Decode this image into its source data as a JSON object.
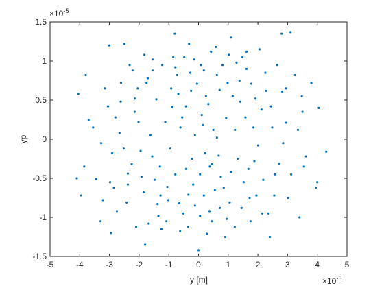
{
  "chart_data": {
    "type": "scatter",
    "xlabel": "y [m]",
    "ylabel": "yp",
    "exponent_base": "×10",
    "x_exponent": "-5",
    "y_exponent": "-5",
    "xlim": [
      -5,
      5
    ],
    "ylim": [
      -1.5,
      1.5
    ],
    "xticks": [
      -5,
      -4,
      -3,
      -2,
      -1,
      0,
      1,
      2,
      3,
      4,
      5
    ],
    "yticks": [
      -1.5,
      -1,
      -0.5,
      0,
      0.5,
      1,
      1.5
    ],
    "grid": false,
    "box": true,
    "series": [
      {
        "color": "#0072bd",
        "x": [
          -0.12,
          0.45,
          -0.88,
          1.23,
          -1.56,
          0.71,
          -0.34,
          2.01,
          -2.15,
          0.18,
          1.52,
          -1.05,
          0.93,
          -0.61,
          2.44,
          -2.38,
          0.05,
          1.78,
          -1.71,
          0.37,
          -0.25,
          2.71,
          -2.66,
          1.05,
          -1.22,
          0.62,
          -0.95,
          1.41,
          -1.38,
          0.22,
          2.95,
          -2.91,
          0.81,
          -0.51,
          1.95,
          -2.05,
          0.11,
          -0.72,
          1.62,
          -1.85,
          3.12,
          -3.05,
          0.55,
          -0.15,
          2.25,
          -2.42,
          1.15,
          -1.12,
          0.33,
          -0.42,
          3.35,
          -3.28,
          0.95,
          -0.85,
          2.55,
          -2.61,
          1.85,
          -1.95,
          0.05,
          -0.05,
          3.48,
          -3.45,
          1.32,
          -1.42,
          0.68,
          -0.78,
          2.12,
          -2.25,
          1.02,
          -1.08,
          3.62,
          -3.7,
          0.42,
          -0.35,
          2.82,
          -2.85,
          1.68,
          -1.62,
          0.15,
          -0.22,
          3.8,
          -3.85,
          1.48,
          -1.55,
          2.35,
          -2.32,
          0.75,
          -0.68,
          1.22,
          -1.25,
          3.95,
          -4.05,
          2.05,
          -2.1,
          0.28,
          -0.32,
          1.75,
          -1.82,
          2.65,
          -2.75,
          3.1,
          4.3,
          4.0,
          -4.1,
          3.5,
          -3.8,
          0.9,
          -1.8,
          0.0,
          -3.0,
          2.8,
          -0.8,
          1.1,
          -2.5,
          3.4,
          -3.3,
          4.05,
          -3.95,
          2.4,
          -2.95,
          0.5,
          -0.55,
          1.1,
          -1.3,
          0.85,
          -0.92,
          1.58,
          -1.48,
          0.25,
          -0.18,
          1.88,
          -2.02,
          0.62,
          -0.65,
          2.18,
          -2.15,
          1.38,
          -1.28,
          0.08,
          -0.12,
          2.48,
          -2.52,
          1.72,
          -1.75,
          0.45,
          -0.48,
          2.85,
          -2.8,
          1.28,
          -1.35,
          3.02,
          -3.15,
          0.98,
          -1.02,
          2.28,
          -2.38,
          0.38,
          -0.42,
          1.92,
          -1.92,
          3.25,
          -3.22,
          0.72,
          -0.78,
          2.58,
          -2.62,
          1.45,
          -1.55,
          0.18,
          -0.28,
          3.55,
          -3.55,
          1.62,
          -1.68,
          2.95,
          -2.98,
          0.58,
          -0.62,
          2.15,
          -2.22
        ],
        "values": [
          0.05,
          -0.32,
          0.41,
          0.12,
          -0.22,
          0.63,
          -0.71,
          -0.08,
          0.35,
          0.88,
          -0.55,
          -0.61,
          0.27,
          0.15,
          0.42,
          -0.44,
          -0.45,
          0.71,
          0.78,
          -0.92,
          0.62,
          -0.31,
          0.08,
          -0.81,
          0.95,
          0.02,
          -0.12,
          0.48,
          -0.83,
          -0.18,
          0.21,
          -0.18,
          0.95,
          -0.95,
          -0.72,
          0.65,
          0.31,
          0.82,
          0.9,
          -0.68,
          -0.45,
          0.42,
          -0.65,
          1.02,
          0.85,
          -0.81,
          0.55,
          0.22,
          0.45,
          -0.38,
          0.12,
          -0.05,
          -1.02,
          1.05,
          -0.72,
          0.72,
          0.15,
          -0.15,
          -0.98,
          0.71,
          0.55,
          -0.51,
          -0.25,
          0.51,
          -0.21,
          -0.45,
          0.38,
          -0.32,
          1.08,
          -1.05,
          -0.22,
          0.25,
          1.12,
          -1.12,
          0.61,
          -0.62,
          -0.38,
          0.05,
          0.18,
          -0.25,
          0.72,
          -0.35,
          1.05,
          1.02,
          -0.95,
          0.95,
          -0.48,
          0.58,
          -1.12,
          -1.15,
          -0.62,
          0.58,
          1.15,
          -1.12,
          -1.21,
          1.22,
          -1.05,
          1.08,
          0.95,
          -0.92,
          1.37,
          -0.16,
          -0.55,
          -0.5,
          0.35,
          0.82,
          -1.25,
          -1.35,
          -1.42,
          1.2,
          1.35,
          1.35,
          1.3,
          1.22,
          -1.0,
          -1.05,
          0.4,
          -0.72,
          -1.25,
          -1.2,
          0.12,
          0.28,
          -0.42,
          -0.35,
          -0.62,
          0.65,
          0.28,
          -0.52,
          0.55,
          -0.58,
          -0.28,
          0.22,
          0.82,
          -0.82,
          -0.52,
          0.52,
          0.75,
          -0.72,
          0.95,
          -0.85,
          0.15,
          -0.12,
          -0.75,
          0.72,
          -1.05,
          1.05,
          -0.05,
          0.28,
          0.98,
          -0.98,
          -0.75,
          0.65,
          0.72,
          -0.78,
          0.62,
          -0.58,
          -0.35,
          0.42,
          0.52,
          -0.48,
          0.82,
          -0.78,
          -0.88,
          0.92,
          -0.45,
          0.48,
          -0.88,
          0.88,
          -0.72,
          0.85,
          -0.35,
          0.15,
          1.12,
          -1.08,
          0.65,
          -0.55,
          1.18,
          -1.18,
          -0.95,
          0.88
        ]
      }
    ]
  }
}
